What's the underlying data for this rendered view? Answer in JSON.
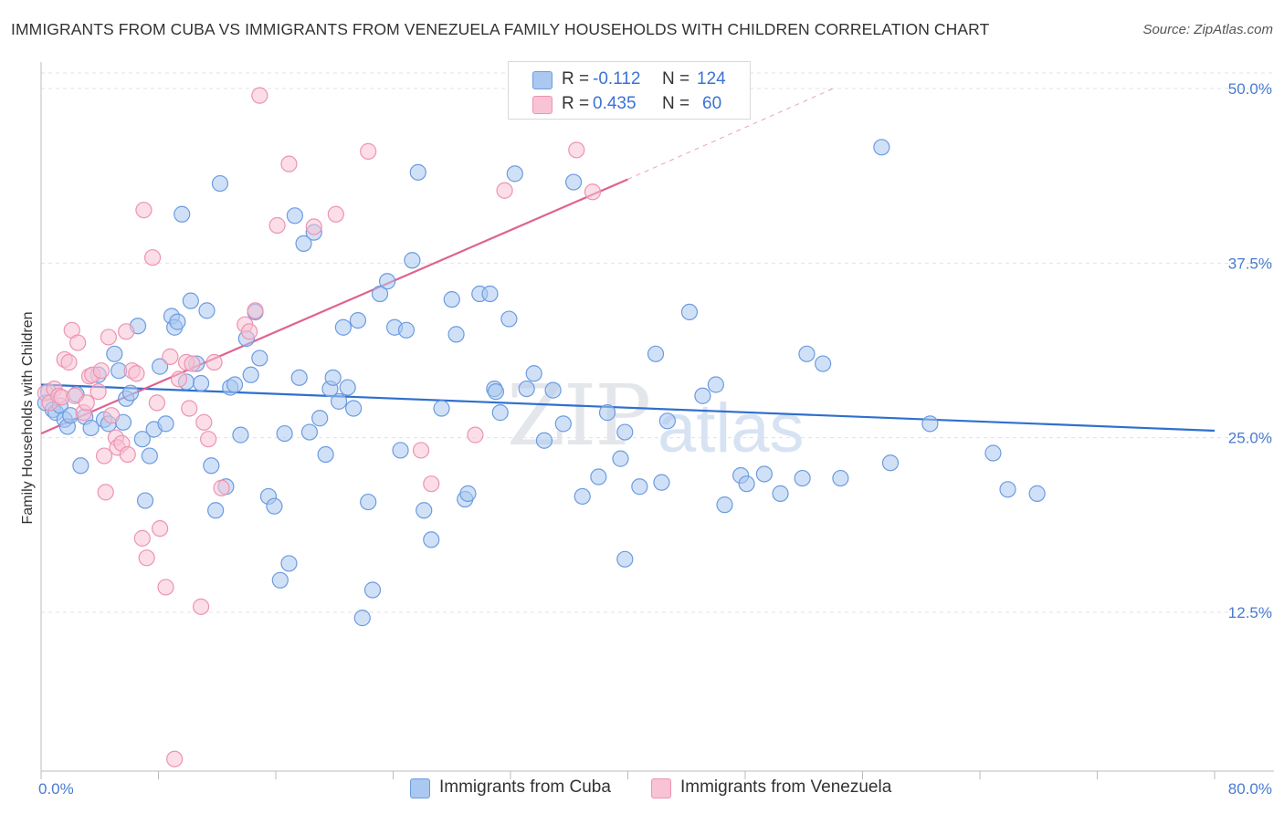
{
  "title": "IMMIGRANTS FROM CUBA VS IMMIGRANTS FROM VENEZUELA FAMILY HOUSEHOLDS WITH CHILDREN CORRELATION CHART",
  "source": "Source: ZipAtlas.com",
  "watermark_a": "ZIP",
  "watermark_b": "atlas",
  "legend": {
    "cuba": {
      "r_label": "R =",
      "r_value": "-0.112",
      "n_label": "N =",
      "n_value": "124"
    },
    "venezuela": {
      "r_label": "R =",
      "r_value": "0.435",
      "n_label": "N =",
      "n_value": "60"
    }
  },
  "colors": {
    "cuba_fill": "#aac8f0",
    "cuba_stroke": "#6c9be0",
    "cuba_line": "#2f6fcf",
    "ven_fill": "#f8c3d4",
    "ven_stroke": "#ee93b2",
    "ven_line": "#e0628f",
    "tick_text": "#4a7bd0",
    "grid": "#e3e3e3"
  },
  "chart_data": {
    "type": "scatter",
    "title": "IMMIGRANTS FROM CUBA VS IMMIGRANTS FROM VENEZUELA FAMILY HOUSEHOLDS WITH CHILDREN CORRELATION CHART",
    "xlabel": "",
    "ylabel": "Family Households with Children",
    "xlim": [
      0,
      80
    ],
    "ylim": [
      0,
      51
    ],
    "x_tick_labels": [
      "0.0%",
      "80.0%"
    ],
    "y_ticks": [
      12.5,
      25.0,
      37.5,
      50.0
    ],
    "y_tick_labels": [
      "12.5%",
      "25.0%",
      "37.5%",
      "50.0%"
    ],
    "legend_position": "bottom",
    "series": [
      {
        "name": "Immigrants from Cuba",
        "trend": {
          "x": [
            0,
            80
          ],
          "y": [
            28.8,
            25.5
          ]
        },
        "points": [
          [
            0.3,
            27.5
          ],
          [
            0.5,
            28.3
          ],
          [
            0.8,
            27.0
          ],
          [
            1.0,
            26.8
          ],
          [
            1.3,
            27.3
          ],
          [
            1.6,
            26.3
          ],
          [
            1.8,
            25.8
          ],
          [
            2.0,
            26.6
          ],
          [
            2.4,
            28.1
          ],
          [
            2.7,
            23.0
          ],
          [
            3.0,
            26.5
          ],
          [
            3.4,
            25.7
          ],
          [
            3.9,
            29.5
          ],
          [
            4.3,
            26.3
          ],
          [
            4.6,
            26.0
          ],
          [
            5.0,
            31.0
          ],
          [
            5.3,
            29.8
          ],
          [
            5.6,
            26.1
          ],
          [
            5.8,
            27.8
          ],
          [
            6.1,
            28.2
          ],
          [
            6.6,
            33.0
          ],
          [
            6.9,
            24.9
          ],
          [
            7.1,
            20.5
          ],
          [
            7.4,
            23.7
          ],
          [
            7.7,
            25.6
          ],
          [
            8.1,
            30.1
          ],
          [
            8.5,
            26.0
          ],
          [
            8.9,
            33.7
          ],
          [
            9.1,
            32.9
          ],
          [
            9.3,
            33.3
          ],
          [
            9.6,
            41.0
          ],
          [
            9.9,
            29.0
          ],
          [
            10.2,
            34.8
          ],
          [
            10.6,
            30.3
          ],
          [
            10.9,
            28.9
          ],
          [
            11.3,
            34.1
          ],
          [
            11.6,
            23.0
          ],
          [
            11.9,
            19.8
          ],
          [
            12.2,
            43.2
          ],
          [
            12.6,
            21.5
          ],
          [
            12.9,
            28.6
          ],
          [
            13.2,
            28.8
          ],
          [
            13.6,
            25.2
          ],
          [
            14.0,
            32.1
          ],
          [
            14.3,
            29.5
          ],
          [
            14.6,
            34.0
          ],
          [
            14.9,
            30.7
          ],
          [
            15.5,
            20.8
          ],
          [
            15.9,
            20.1
          ],
          [
            16.3,
            14.8
          ],
          [
            16.6,
            25.3
          ],
          [
            16.9,
            16.0
          ],
          [
            17.3,
            40.9
          ],
          [
            17.6,
            29.3
          ],
          [
            17.9,
            38.9
          ],
          [
            18.3,
            25.4
          ],
          [
            18.6,
            39.7
          ],
          [
            19.0,
            26.4
          ],
          [
            19.4,
            23.8
          ],
          [
            19.7,
            28.5
          ],
          [
            19.9,
            29.3
          ],
          [
            20.3,
            27.6
          ],
          [
            20.6,
            32.9
          ],
          [
            20.9,
            28.6
          ],
          [
            21.3,
            27.1
          ],
          [
            21.6,
            33.4
          ],
          [
            21.9,
            12.1
          ],
          [
            22.3,
            20.4
          ],
          [
            22.6,
            14.1
          ],
          [
            23.1,
            35.3
          ],
          [
            23.6,
            36.2
          ],
          [
            24.1,
            32.9
          ],
          [
            24.5,
            24.1
          ],
          [
            24.9,
            32.7
          ],
          [
            25.3,
            37.7
          ],
          [
            25.7,
            44.0
          ],
          [
            26.1,
            19.8
          ],
          [
            26.6,
            17.7
          ],
          [
            27.3,
            27.1
          ],
          [
            28.0,
            34.9
          ],
          [
            28.3,
            32.4
          ],
          [
            28.9,
            20.6
          ],
          [
            29.1,
            21.0
          ],
          [
            29.9,
            35.3
          ],
          [
            30.6,
            35.3
          ],
          [
            30.9,
            28.5
          ],
          [
            31.0,
            28.3
          ],
          [
            31.3,
            26.8
          ],
          [
            31.9,
            33.5
          ],
          [
            32.3,
            43.9
          ],
          [
            33.1,
            28.5
          ],
          [
            33.6,
            29.6
          ],
          [
            34.3,
            24.8
          ],
          [
            34.9,
            28.4
          ],
          [
            35.6,
            26.0
          ],
          [
            36.3,
            43.3
          ],
          [
            36.9,
            20.8
          ],
          [
            38.0,
            22.2
          ],
          [
            38.6,
            26.8
          ],
          [
            39.5,
            23.5
          ],
          [
            39.8,
            25.4
          ],
          [
            39.8,
            16.3
          ],
          [
            40.8,
            21.5
          ],
          [
            41.9,
            31.0
          ],
          [
            42.3,
            21.8
          ],
          [
            42.7,
            26.2
          ],
          [
            44.2,
            34.0
          ],
          [
            45.1,
            28.0
          ],
          [
            46.0,
            28.8
          ],
          [
            46.6,
            20.2
          ],
          [
            47.7,
            22.3
          ],
          [
            48.1,
            21.7
          ],
          [
            49.3,
            22.4
          ],
          [
            50.4,
            21.0
          ],
          [
            51.9,
            22.1
          ],
          [
            52.2,
            31.0
          ],
          [
            53.3,
            30.3
          ],
          [
            54.5,
            22.1
          ],
          [
            57.3,
            45.8
          ],
          [
            57.9,
            23.2
          ],
          [
            60.6,
            26.0
          ],
          [
            64.9,
            23.9
          ],
          [
            65.9,
            21.3
          ],
          [
            67.9,
            21.0
          ]
        ]
      },
      {
        "name": "Immigrants from Venezuela",
        "trend": {
          "x": [
            0,
            40
          ],
          "y": [
            25.3,
            43.5
          ]
        },
        "trend_extension": {
          "x": [
            40,
            54
          ],
          "y": [
            43.5,
            50.0
          ]
        },
        "points": [
          [
            0.3,
            28.2
          ],
          [
            0.6,
            27.5
          ],
          [
            0.9,
            28.5
          ],
          [
            1.2,
            28.0
          ],
          [
            1.4,
            27.9
          ],
          [
            1.6,
            30.6
          ],
          [
            1.9,
            30.4
          ],
          [
            2.1,
            32.7
          ],
          [
            2.3,
            28.0
          ],
          [
            2.5,
            31.8
          ],
          [
            2.9,
            26.8
          ],
          [
            3.1,
            27.5
          ],
          [
            3.3,
            29.4
          ],
          [
            3.5,
            29.5
          ],
          [
            3.9,
            28.3
          ],
          [
            4.1,
            29.8
          ],
          [
            4.3,
            23.7
          ],
          [
            4.4,
            21.1
          ],
          [
            4.6,
            32.2
          ],
          [
            4.8,
            26.6
          ],
          [
            5.1,
            25.0
          ],
          [
            5.2,
            24.3
          ],
          [
            5.5,
            24.6
          ],
          [
            5.8,
            32.6
          ],
          [
            5.9,
            23.8
          ],
          [
            6.2,
            29.8
          ],
          [
            6.5,
            29.6
          ],
          [
            6.9,
            17.8
          ],
          [
            7.0,
            41.3
          ],
          [
            7.2,
            16.4
          ],
          [
            7.6,
            37.9
          ],
          [
            7.9,
            27.5
          ],
          [
            8.1,
            18.5
          ],
          [
            8.5,
            14.3
          ],
          [
            8.8,
            30.8
          ],
          [
            9.1,
            2.0
          ],
          [
            9.4,
            29.2
          ],
          [
            9.9,
            30.4
          ],
          [
            10.1,
            27.1
          ],
          [
            10.3,
            30.3
          ],
          [
            10.9,
            12.9
          ],
          [
            11.1,
            26.1
          ],
          [
            11.4,
            24.9
          ],
          [
            11.8,
            30.4
          ],
          [
            12.3,
            21.4
          ],
          [
            13.9,
            33.1
          ],
          [
            14.2,
            32.6
          ],
          [
            14.6,
            34.1
          ],
          [
            14.9,
            49.5
          ],
          [
            16.1,
            40.2
          ],
          [
            16.9,
            44.6
          ],
          [
            18.6,
            40.1
          ],
          [
            20.1,
            41.0
          ],
          [
            22.3,
            45.5
          ],
          [
            25.9,
            24.1
          ],
          [
            26.6,
            21.7
          ],
          [
            29.6,
            25.2
          ],
          [
            31.6,
            42.7
          ],
          [
            36.5,
            45.6
          ],
          [
            37.6,
            42.6
          ]
        ]
      }
    ]
  }
}
